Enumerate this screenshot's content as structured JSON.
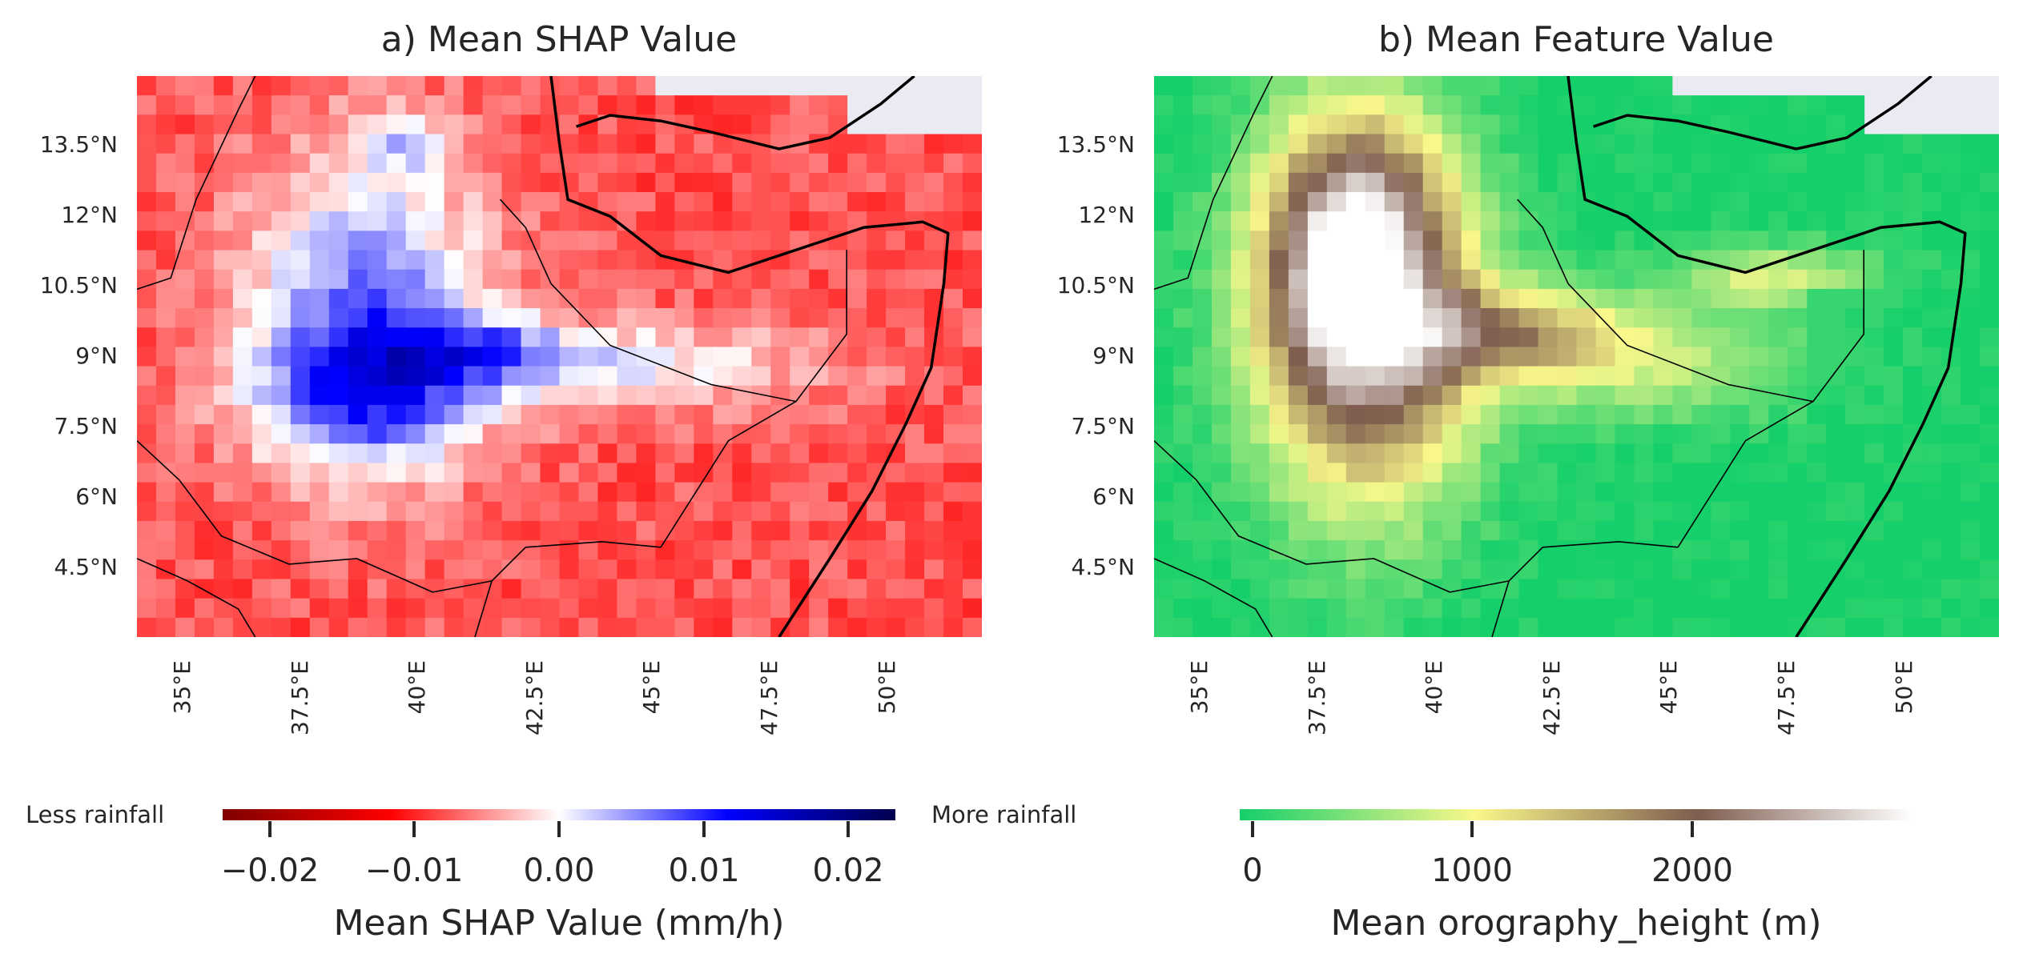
{
  "panels": [
    {
      "title": "a) Mean SHAP Value",
      "lat_labels": [
        "13.5°N",
        "12°N",
        "10.5°N",
        "9°N",
        "7.5°N",
        "6°N",
        "4.5°N"
      ],
      "lon_labels": [
        "35°E",
        "37.5°E",
        "40°E",
        "42.5°E",
        "45°E",
        "47.5°E",
        "50°E"
      ],
      "colorbar": {
        "label": "Mean SHAP Value (mm/h)",
        "left_note": "Less rainfall",
        "right_note": "More rainfall",
        "ticks": [
          "−0.02",
          "−0.01",
          "0.00",
          "0.01",
          "0.02"
        ],
        "tick_values": [
          -0.02,
          -0.01,
          0.0,
          0.01,
          0.02
        ],
        "vmin": -0.023,
        "vmax": 0.023,
        "colormap": "seismic_r",
        "colors": [
          "#7f0000",
          "#ff0000",
          "#ffffff",
          "#0000ff",
          "#00004d"
        ]
      }
    },
    {
      "title": "b) Mean Feature Value",
      "lat_labels": [
        "13.5°N",
        "12°N",
        "10.5°N",
        "9°N",
        "7.5°N",
        "6°N",
        "4.5°N"
      ],
      "lon_labels": [
        "35°E",
        "37.5°E",
        "40°E",
        "42.5°E",
        "45°E",
        "47.5°E",
        "50°E"
      ],
      "colorbar": {
        "label": "Mean orography_height (m)",
        "ticks": [
          "0",
          "1000",
          "2000"
        ],
        "tick_values": [
          0,
          1000,
          2000
        ],
        "vmin": -60,
        "vmax": 3000,
        "colormap": "terrain",
        "colors": [
          "#15cf6a",
          "#f9f78a",
          "#7f5d4f",
          "#ffffff"
        ]
      }
    }
  ],
  "map_extent": {
    "lon": [
      34,
      52
    ],
    "lat": [
      3,
      15
    ]
  },
  "missing_color": "#eaeaf2"
}
